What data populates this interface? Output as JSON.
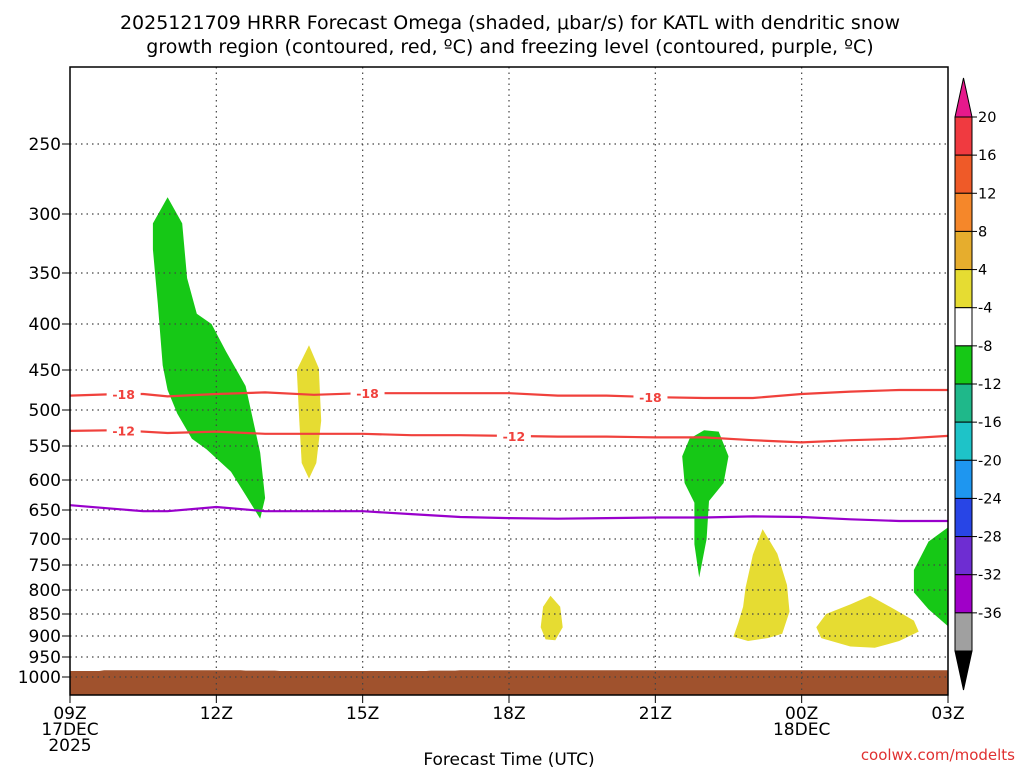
{
  "chart_data": {
    "type": "time-height",
    "title_lines": [
      "2025121709 HRRR Forecast Omega (shaded, μbar/s) for KATL with dendritic snow",
      "growth region (contoured, red, ºC) and freezing level (contoured, purple, ºC)"
    ],
    "xlabel": "Forecast Time (UTC)",
    "credit": "coolwx.com/modelts",
    "x_range": [
      0,
      18
    ],
    "x_ticks": [
      {
        "x": 0,
        "lines": [
          "09Z",
          "17DEC",
          "2025"
        ]
      },
      {
        "x": 3,
        "lines": [
          "12Z"
        ]
      },
      {
        "x": 6,
        "lines": [
          "15Z"
        ]
      },
      {
        "x": 9,
        "lines": [
          "18Z"
        ]
      },
      {
        "x": 12,
        "lines": [
          "21Z"
        ]
      },
      {
        "x": 15,
        "lines": [
          "00Z",
          "18DEC"
        ]
      },
      {
        "x": 18,
        "lines": [
          "03Z"
        ]
      }
    ],
    "y_ticks": [
      250,
      300,
      350,
      400,
      450,
      500,
      550,
      600,
      650,
      700,
      750,
      800,
      850,
      900,
      950,
      1000
    ],
    "y_range_hPa": [
      200,
      1010
    ],
    "ground": {
      "color": "#a0522d",
      "top_hPa": [
        [
          0,
          985
        ],
        [
          0.6,
          985
        ],
        [
          0.7,
          983
        ],
        [
          3.5,
          983
        ],
        [
          3.6,
          984
        ],
        [
          4.2,
          984
        ],
        [
          4.3,
          985
        ],
        [
          7.3,
          985
        ],
        [
          7.4,
          984
        ],
        [
          7.9,
          984
        ],
        [
          8.0,
          983
        ],
        [
          18,
          983
        ]
      ]
    },
    "omega_regions": [
      {
        "color": "#16c816",
        "label": "-8 to -4",
        "points": [
          [
            1.7,
            308
          ],
          [
            2.0,
            288
          ],
          [
            2.3,
            308
          ],
          [
            2.4,
            355
          ],
          [
            2.6,
            390
          ],
          [
            2.9,
            400
          ],
          [
            3.2,
            430
          ],
          [
            3.6,
            470
          ],
          [
            3.9,
            560
          ],
          [
            4.0,
            630
          ],
          [
            3.9,
            665
          ],
          [
            3.6,
            625
          ],
          [
            3.3,
            588
          ],
          [
            2.8,
            555
          ],
          [
            2.5,
            540
          ],
          [
            2.2,
            505
          ],
          [
            2.0,
            475
          ],
          [
            1.9,
            445
          ],
          [
            1.8,
            380
          ],
          [
            1.7,
            330
          ]
        ]
      },
      {
        "color": "#16c816",
        "label": "-8 to -4",
        "points": [
          [
            13.0,
            528
          ],
          [
            13.3,
            530
          ],
          [
            13.5,
            565
          ],
          [
            13.4,
            605
          ],
          [
            13.1,
            635
          ],
          [
            13.05,
            700
          ],
          [
            12.9,
            775
          ],
          [
            12.8,
            710
          ],
          [
            12.8,
            638
          ],
          [
            12.6,
            605
          ],
          [
            12.55,
            565
          ],
          [
            12.7,
            540
          ]
        ]
      },
      {
        "color": "#16c816",
        "label": "-8 to -4",
        "points": [
          [
            18,
            680
          ],
          [
            17.6,
            705
          ],
          [
            17.3,
            760
          ],
          [
            17.3,
            805
          ],
          [
            17.6,
            840
          ],
          [
            18,
            878
          ]
        ]
      },
      {
        "color": "#e6dc32",
        "label": "4 to 8",
        "points": [
          [
            4.9,
            423
          ],
          [
            5.1,
            448
          ],
          [
            5.15,
            515
          ],
          [
            5.05,
            575
          ],
          [
            4.9,
            598
          ],
          [
            4.75,
            575
          ],
          [
            4.7,
            515
          ],
          [
            4.65,
            450
          ]
        ]
      },
      {
        "color": "#e6dc32",
        "label": "4 to 8",
        "points": [
          [
            9.85,
            812
          ],
          [
            10.05,
            835
          ],
          [
            10.1,
            880
          ],
          [
            9.95,
            910
          ],
          [
            9.75,
            908
          ],
          [
            9.65,
            880
          ],
          [
            9.7,
            835
          ]
        ]
      },
      {
        "color": "#e6dc32",
        "label": "4 to 8",
        "points": [
          [
            14.2,
            683
          ],
          [
            14.5,
            728
          ],
          [
            14.7,
            790
          ],
          [
            14.75,
            845
          ],
          [
            14.6,
            895
          ],
          [
            14.3,
            905
          ],
          [
            13.9,
            912
          ],
          [
            13.6,
            902
          ],
          [
            13.7,
            870
          ],
          [
            13.8,
            835
          ],
          [
            13.85,
            795
          ],
          [
            14.0,
            730
          ]
        ]
      },
      {
        "color": "#e6dc32",
        "label": "4 to 8",
        "points": [
          [
            16.0,
            830
          ],
          [
            16.4,
            812
          ],
          [
            16.9,
            840
          ],
          [
            17.3,
            865
          ],
          [
            17.4,
            890
          ],
          [
            17.0,
            912
          ],
          [
            16.5,
            928
          ],
          [
            16.0,
            925
          ],
          [
            15.4,
            905
          ],
          [
            15.3,
            880
          ],
          [
            15.5,
            850
          ]
        ]
      }
    ],
    "contours": [
      {
        "name": "isotherm -18 ºC",
        "color": "#f0413c",
        "label": "-18",
        "label_x": [
          1.1,
          6.1,
          11.9
        ],
        "points": [
          [
            0,
            482
          ],
          [
            1.0,
            480
          ],
          [
            1.5,
            480
          ],
          [
            2.0,
            483
          ],
          [
            3.0,
            480
          ],
          [
            4.0,
            478
          ],
          [
            5.0,
            481
          ],
          [
            6.0,
            479
          ],
          [
            7.0,
            479
          ],
          [
            8.0,
            479
          ],
          [
            9.0,
            479
          ],
          [
            10.0,
            482
          ],
          [
            11.0,
            482
          ],
          [
            12.0,
            484
          ],
          [
            13.0,
            485
          ],
          [
            14.0,
            485
          ],
          [
            15.0,
            480
          ],
          [
            16.0,
            477
          ],
          [
            17.0,
            475
          ],
          [
            18,
            475
          ]
        ]
      },
      {
        "name": "isotherm -12 ºC",
        "color": "#f0413c",
        "label": "-12",
        "label_x": [
          1.1,
          9.1
        ],
        "points": [
          [
            0,
            529
          ],
          [
            1.0,
            528
          ],
          [
            2.0,
            532
          ],
          [
            3.0,
            530
          ],
          [
            4.0,
            533
          ],
          [
            5.0,
            533
          ],
          [
            6.0,
            533
          ],
          [
            7.0,
            535
          ],
          [
            8.0,
            535
          ],
          [
            9.0,
            536
          ],
          [
            10.0,
            537
          ],
          [
            11.0,
            537
          ],
          [
            12.0,
            538
          ],
          [
            13.0,
            538
          ],
          [
            14.0,
            542
          ],
          [
            15.0,
            545
          ],
          [
            16.0,
            542
          ],
          [
            17.0,
            540
          ],
          [
            18,
            536
          ]
        ]
      },
      {
        "name": "freezing level 0 ºC",
        "color": "#9900cc",
        "label": "",
        "label_x": [],
        "points": [
          [
            0,
            642
          ],
          [
            1.5,
            652
          ],
          [
            2.0,
            652
          ],
          [
            3.0,
            645
          ],
          [
            4.0,
            652
          ],
          [
            5.0,
            652
          ],
          [
            6.0,
            652
          ],
          [
            7.0,
            657
          ],
          [
            8.0,
            662
          ],
          [
            9.0,
            664
          ],
          [
            10.0,
            665
          ],
          [
            11.0,
            664
          ],
          [
            12.0,
            663
          ],
          [
            13.0,
            663
          ],
          [
            14.0,
            661
          ],
          [
            15.0,
            662
          ],
          [
            16.0,
            666
          ],
          [
            17.0,
            669
          ],
          [
            18,
            669
          ]
        ]
      }
    ],
    "colorbar": {
      "labels": [
        "20",
        "16",
        "12",
        "8",
        "4",
        "-4",
        "-8",
        "-12",
        "-16",
        "-20",
        "-24",
        "-28",
        "-32",
        "-36"
      ],
      "colors": [
        "#f03a40",
        "#ef5a28",
        "#f5872a",
        "#e6ad2d",
        "#e6dc32",
        "#ffffff",
        "#16c816",
        "#1fb88a",
        "#1ec3c8",
        "#1e96f0",
        "#2845e6",
        "#6e2dd2",
        "#a000c8",
        "#a0a0a0"
      ],
      "top_color": "#e6198c",
      "bottom_color": "#000000"
    }
  }
}
